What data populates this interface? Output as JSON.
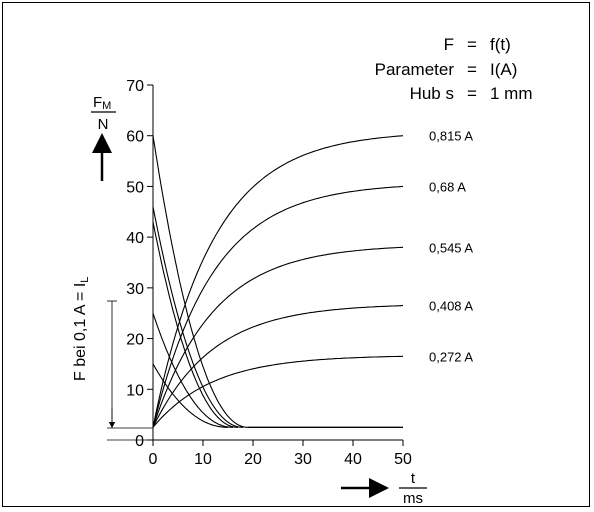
{
  "chart_data": {
    "type": "line",
    "header": {
      "line1": {
        "lhs": "F",
        "eq": "=",
        "rhs": "f(t)"
      },
      "line2": {
        "lhs": "Parameter",
        "eq": "=",
        "rhs": "I(A)"
      },
      "line3": {
        "lhs": "Hub s",
        "eq": "=",
        "rhs": "1 mm"
      }
    },
    "ylabel": {
      "numerator": "F",
      "numerator_sub": "M",
      "denominator": "N"
    },
    "xlabel": {
      "numerator": "t",
      "denominator": "ms"
    },
    "side_label": {
      "text": "F bei 0,1 A = I",
      "sub": "L"
    },
    "xlim": [
      0,
      50
    ],
    "ylim": [
      0,
      70
    ],
    "xticks": [
      0,
      10,
      20,
      30,
      40,
      50
    ],
    "yticks": [
      0,
      10,
      20,
      30,
      40,
      50,
      60,
      70
    ],
    "baseline_force": 2.5,
    "rising_series": [
      {
        "name": "0,815 A",
        "final": 60
      },
      {
        "name": "0,68   A",
        "final": 50
      },
      {
        "name": "0,545 A",
        "final": 38
      },
      {
        "name": "0,408 A",
        "final": 26.5
      },
      {
        "name": "0,272 A",
        "final": 16.5
      }
    ],
    "decaying_series": [
      {
        "start": 60,
        "end_t": 19
      },
      {
        "start": 46,
        "end_t": 18
      },
      {
        "start": 43,
        "end_t": 17
      },
      {
        "start": 25,
        "end_t": 16
      },
      {
        "start": 15,
        "end_t": 15
      }
    ]
  }
}
